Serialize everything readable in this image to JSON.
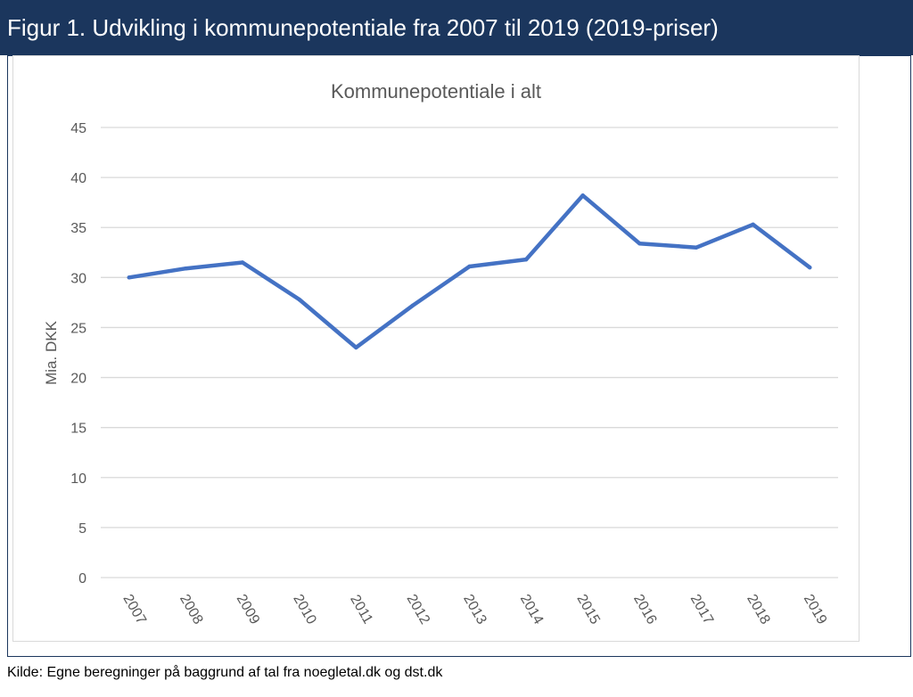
{
  "header": {
    "title": "Figur 1. Udvikling i kommunepotentiale fra 2007 til 2019 (2019-priser)"
  },
  "chart_data": {
    "type": "line",
    "title": "Kommunepotentiale  i alt",
    "xlabel": "",
    "ylabel": "Mia. DKK",
    "ylim": [
      0,
      45
    ],
    "yticks": [
      0,
      5,
      10,
      15,
      20,
      25,
      30,
      35,
      40,
      45
    ],
    "categories": [
      "2007",
      "2008",
      "2009",
      "2010",
      "2011",
      "2012",
      "2013",
      "2014",
      "2015",
      "2016",
      "2017",
      "2018",
      "2019"
    ],
    "series": [
      {
        "values": [
          30.0,
          30.9,
          31.5,
          27.8,
          23.0,
          27.2,
          31.1,
          31.8,
          38.2,
          33.4,
          33.0,
          35.3,
          31.0
        ]
      }
    ],
    "grid": "horizontal",
    "legend": "none",
    "colors": {
      "line": "#4472c4",
      "grid": "#d9d9d9",
      "axis_text": "#595959",
      "header_bg": "#1b365d"
    }
  },
  "footer": {
    "source": "Kilde:  Egne beregninger på baggrund af tal fra noegletal.dk og dst.dk"
  }
}
